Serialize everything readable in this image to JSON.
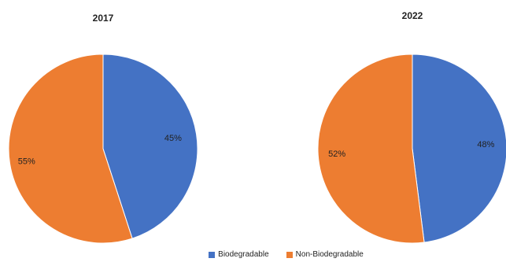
{
  "chart_data": [
    {
      "type": "pie",
      "title": "2017",
      "categories": [
        "Biodegradable",
        "Non-Biodegradable"
      ],
      "values": [
        45,
        55
      ],
      "labels": [
        "45%",
        "55%"
      ]
    },
    {
      "type": "pie",
      "title": "2022",
      "categories": [
        "Biodegradable",
        "Non-Biodegradable"
      ],
      "values": [
        48,
        52
      ],
      "labels": [
        "48%",
        "52%"
      ]
    }
  ],
  "legend": {
    "position": "bottom",
    "items": [
      {
        "label": "Biodegradable",
        "color": "#4472c4"
      },
      {
        "label": "Non-Biodegradable",
        "color": "#ed7d31"
      }
    ]
  }
}
